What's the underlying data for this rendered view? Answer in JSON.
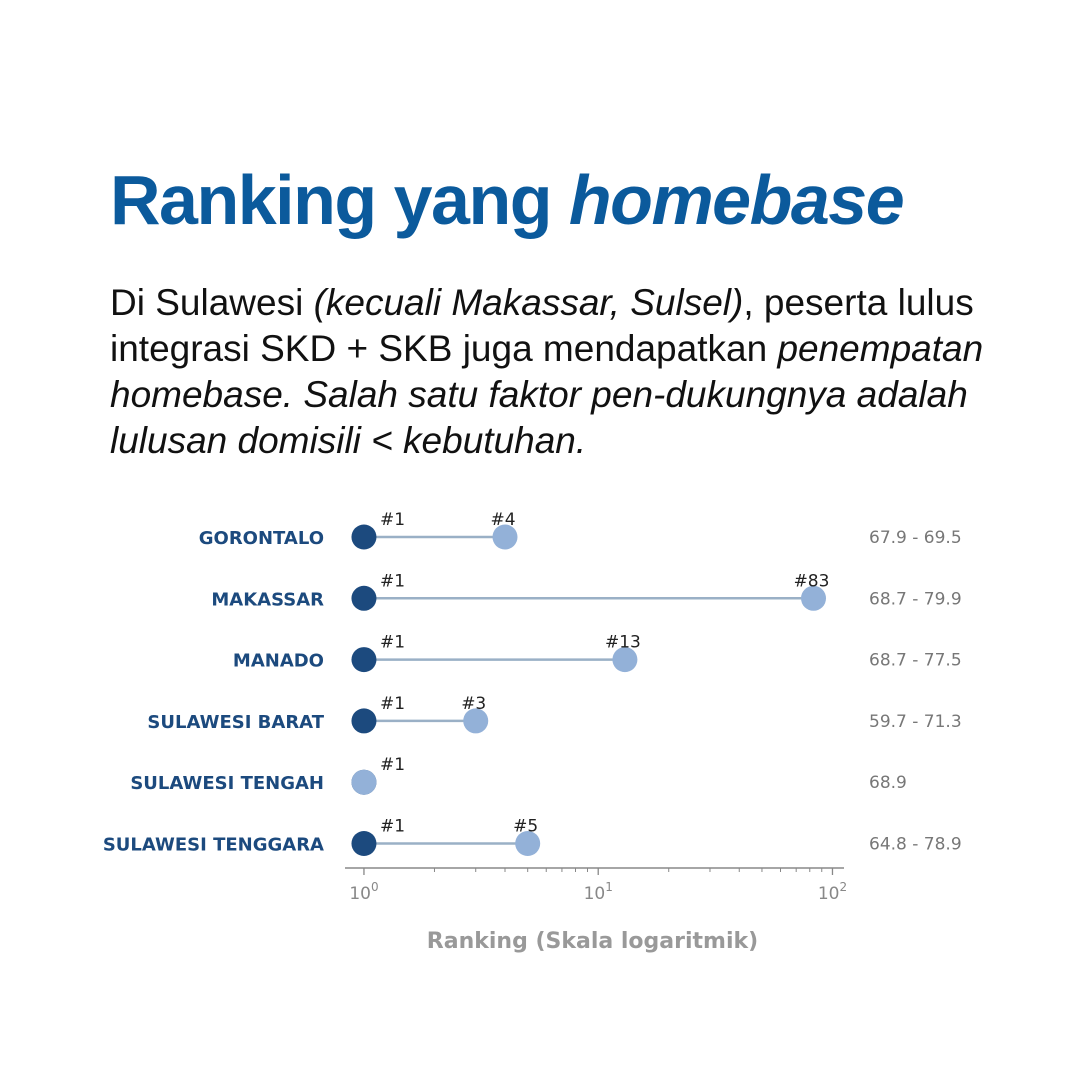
{
  "header": {
    "title_regular": "Ranking yang ",
    "title_italic": "homebase"
  },
  "description": {
    "part1": "Di Sulawesi ",
    "part2_italic": "(kecuali Makassar, Sulsel)",
    "part3": ", peserta lulus integrasi SKD + SKB juga mendapatkan ",
    "part4_italic": "penempatan homebase. Salah satu faktor pen-dukungnya adalah lulusan domisili < kebutuhan."
  },
  "colors": {
    "title": "#0b5a9c",
    "category_label": "#1c4a7e",
    "dot_best": "#1c4a7e",
    "dot_worst": "#93b1d8",
    "connector": "#9ab0c6",
    "range_text": "#777777",
    "axis": "#888888",
    "axis_label": "#999999"
  },
  "chart_data": {
    "type": "scatter",
    "x_scale": "log",
    "xlim": [
      0.83,
      112
    ],
    "xlabel": "Ranking (Skala logaritmik)",
    "ticks": [
      {
        "value": 1,
        "base": "10",
        "exp": "0"
      },
      {
        "value": 10,
        "base": "10",
        "exp": "1"
      },
      {
        "value": 100,
        "base": "10",
        "exp": "2"
      }
    ],
    "minor_ticks": [
      2,
      3,
      4,
      5,
      6,
      7,
      8,
      9,
      20,
      30,
      40,
      50,
      60,
      70,
      80,
      90
    ],
    "rows": [
      {
        "category": "GORONTALO",
        "best": 1,
        "worst": 4,
        "best_label": "#1",
        "worst_label": "#4",
        "range": "67.9 - 69.5"
      },
      {
        "category": "MAKASSAR",
        "best": 1,
        "worst": 83,
        "best_label": "#1",
        "worst_label": "#83",
        "range": "68.7 - 79.9"
      },
      {
        "category": "MANADO",
        "best": 1,
        "worst": 13,
        "best_label": "#1",
        "worst_label": "#13",
        "range": "68.7 - 77.5"
      },
      {
        "category": "SULAWESI BARAT",
        "best": 1,
        "worst": 3,
        "best_label": "#1",
        "worst_label": "#3",
        "range": "59.7 - 71.3"
      },
      {
        "category": "SULAWESI TENGAH",
        "best": 1,
        "worst": 1,
        "best_label": "#1",
        "worst_label": "",
        "range": "68.9"
      },
      {
        "category": "SULAWESI TENGGARA",
        "best": 1,
        "worst": 5,
        "best_label": "#1",
        "worst_label": "#5",
        "range": "64.8 - 78.9"
      }
    ]
  }
}
